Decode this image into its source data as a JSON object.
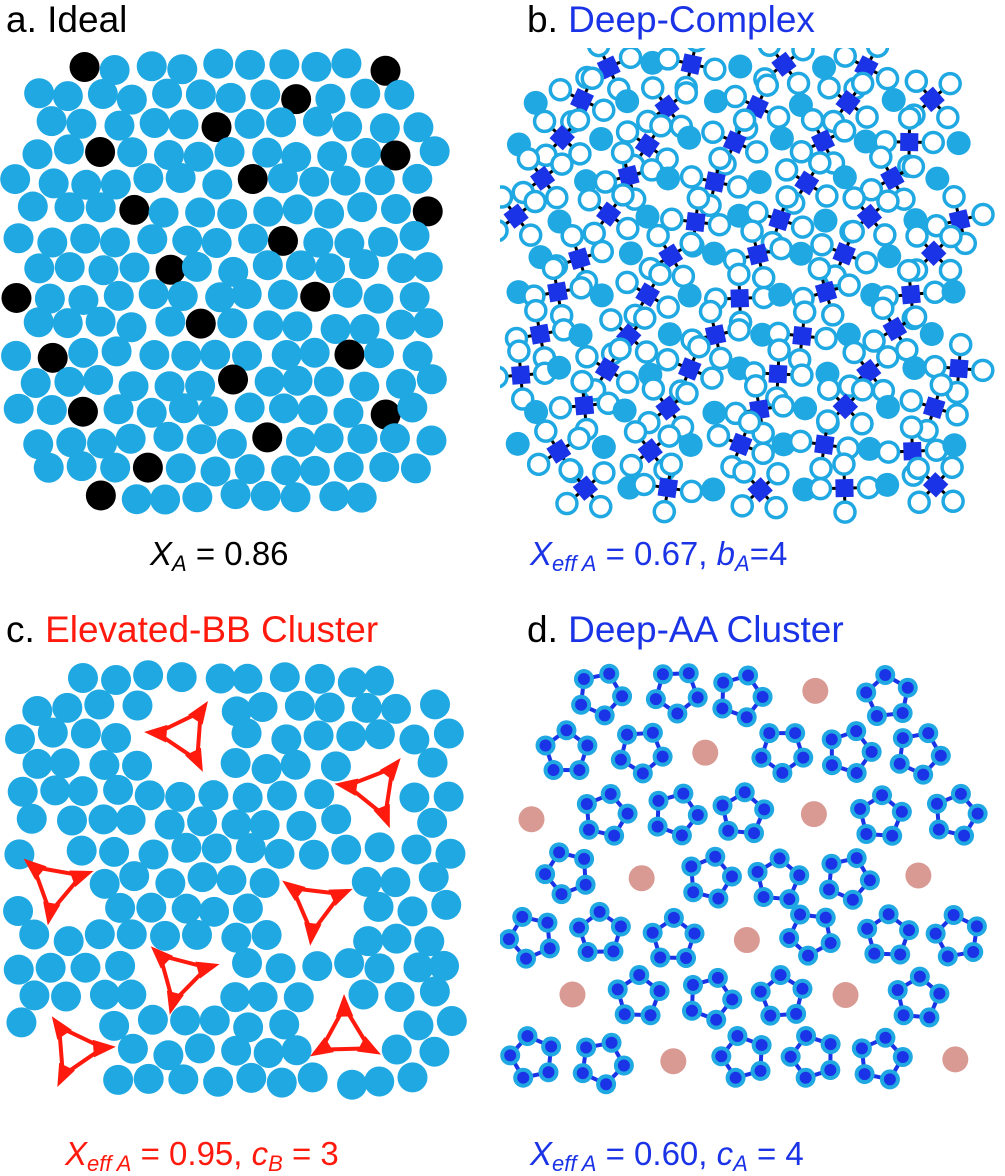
{
  "colors": {
    "blue_particle": "#1FA8E2",
    "black_particle": "#000000",
    "complex_blue": "#1A33E6",
    "cluster_blue": "#1A33E6",
    "red_cluster": "#FF1A0D",
    "pink_particle": "#D99A94",
    "caption_black": "#000000",
    "caption_blue": "#1A33E6",
    "caption_red": "#FF1A0D"
  },
  "panels": {
    "a": {
      "letter": "a.",
      "title": "Ideal",
      "caption": {
        "var": "X",
        "sub": "A",
        "rest": " = 0.86"
      }
    },
    "b": {
      "letter": "b.",
      "title": "Deep-Complex",
      "caption": {
        "var": "X",
        "sub": "eff A",
        "mid": " = 0.67, ",
        "var2": "b",
        "sub2": "A",
        "rest": "=4"
      }
    },
    "c": {
      "letter": "c.",
      "title": "Elevated-BB Cluster",
      "caption": {
        "var": "X",
        "sub": "eff A",
        "mid": " = 0.95, ",
        "var2": "c",
        "sub2": "B",
        "rest": " = 3"
      }
    },
    "d": {
      "letter": "d.",
      "title": "Deep-AA Cluster",
      "caption": {
        "var": "X",
        "sub": "eff A",
        "mid": " = 0.60, ",
        "var2": "c",
        "sub2": "A",
        "rest": " = 4"
      }
    }
  }
}
